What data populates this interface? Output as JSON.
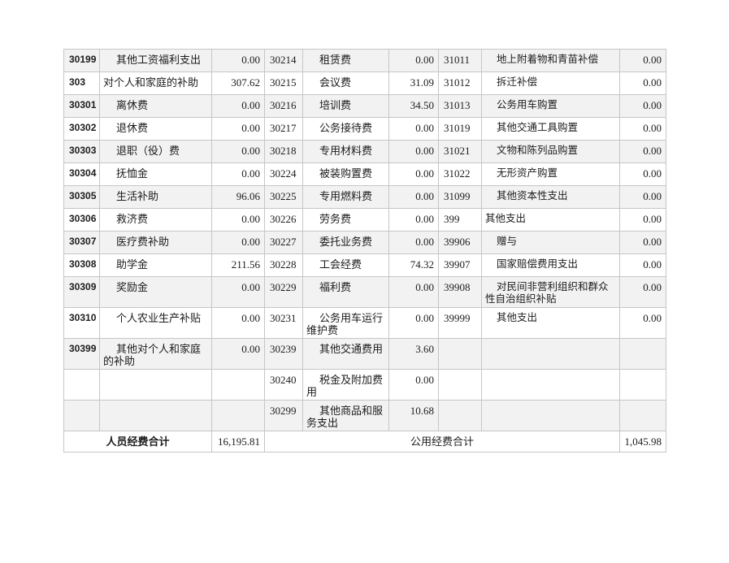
{
  "table": {
    "stripe_color": "#f2f2f2",
    "border_color": "#c6c6c6",
    "rows": [
      {
        "left": {
          "code": "30199",
          "name": "其他工资福利支出",
          "value": "0.00",
          "level": "sub"
        },
        "mid": {
          "code": "30214",
          "name": "租赁费",
          "value": "0.00",
          "level": "sub"
        },
        "right": {
          "code": "31011",
          "name": "地上附着物和青苗补偿",
          "value": "0.00",
          "level": "sub"
        }
      },
      {
        "left": {
          "code": "303",
          "name": "对个人和家庭的补助",
          "value": "307.62",
          "level": "top"
        },
        "mid": {
          "code": "30215",
          "name": "会议费",
          "value": "31.09",
          "level": "sub"
        },
        "right": {
          "code": "31012",
          "name": "拆迁补偿",
          "value": "0.00",
          "level": "sub"
        }
      },
      {
        "left": {
          "code": "30301",
          "name": "离休费",
          "value": "0.00",
          "level": "sub"
        },
        "mid": {
          "code": "30216",
          "name": "培训费",
          "value": "34.50",
          "level": "sub"
        },
        "right": {
          "code": "31013",
          "name": "公务用车购置",
          "value": "0.00",
          "level": "sub"
        }
      },
      {
        "left": {
          "code": "30302",
          "name": "退休费",
          "value": "0.00",
          "level": "sub"
        },
        "mid": {
          "code": "30217",
          "name": "公务接待费",
          "value": "0.00",
          "level": "sub"
        },
        "right": {
          "code": "31019",
          "name": "其他交通工具购置",
          "value": "0.00",
          "level": "sub"
        }
      },
      {
        "left": {
          "code": "30303",
          "name": "退职（役）费",
          "value": "0.00",
          "level": "sub"
        },
        "mid": {
          "code": "30218",
          "name": "专用材料费",
          "value": "0.00",
          "level": "sub"
        },
        "right": {
          "code": "31021",
          "name": "文物和陈列品购置",
          "value": "0.00",
          "level": "sub"
        }
      },
      {
        "left": {
          "code": "30304",
          "name": "抚恤金",
          "value": "0.00",
          "level": "sub"
        },
        "mid": {
          "code": "30224",
          "name": "被装购置费",
          "value": "0.00",
          "level": "sub"
        },
        "right": {
          "code": "31022",
          "name": "无形资产购置",
          "value": "0.00",
          "level": "sub"
        }
      },
      {
        "left": {
          "code": "30305",
          "name": "生活补助",
          "value": "96.06",
          "level": "sub"
        },
        "mid": {
          "code": "30225",
          "name": "专用燃料费",
          "value": "0.00",
          "level": "sub"
        },
        "right": {
          "code": "31099",
          "name": "其他资本性支出",
          "value": "0.00",
          "level": "sub"
        }
      },
      {
        "left": {
          "code": "30306",
          "name": "救济费",
          "value": "0.00",
          "level": "sub"
        },
        "mid": {
          "code": "30226",
          "name": "劳务费",
          "value": "0.00",
          "level": "sub"
        },
        "right": {
          "code": "399",
          "name": "其他支出",
          "value": "0.00",
          "level": "top"
        }
      },
      {
        "left": {
          "code": "30307",
          "name": "医疗费补助",
          "value": "0.00",
          "level": "sub"
        },
        "mid": {
          "code": "30227",
          "name": "委托业务费",
          "value": "0.00",
          "level": "sub"
        },
        "right": {
          "code": "39906",
          "name": "赠与",
          "value": "0.00",
          "level": "sub"
        }
      },
      {
        "left": {
          "code": "30308",
          "name": "助学金",
          "value": "211.56",
          "level": "sub"
        },
        "mid": {
          "code": "30228",
          "name": "工会经费",
          "value": "74.32",
          "level": "sub"
        },
        "right": {
          "code": "39907",
          "name": "国家赔偿费用支出",
          "value": "0.00",
          "level": "sub"
        }
      },
      {
        "left": {
          "code": "30309",
          "name": "奖励金",
          "value": "0.00",
          "level": "sub"
        },
        "mid": {
          "code": "30229",
          "name": "福利费",
          "value": "0.00",
          "level": "sub"
        },
        "right": {
          "code": "39908",
          "name": "对民间非营利组织和群众性自治组织补贴",
          "value": "0.00",
          "level": "sub"
        }
      },
      {
        "left": {
          "code": "30310",
          "name": "个人农业生产补贴",
          "value": "0.00",
          "level": "sub"
        },
        "mid": {
          "code": "30231",
          "name": "公务用车运行维护费",
          "value": "0.00",
          "level": "sub"
        },
        "right": {
          "code": "39999",
          "name": "其他支出",
          "value": "0.00",
          "level": "sub"
        }
      },
      {
        "left": {
          "code": "30399",
          "name": "其他对个人和家庭的补助",
          "value": "0.00",
          "level": "sub"
        },
        "mid": {
          "code": "30239",
          "name": "其他交通费用",
          "value": "3.60",
          "level": "sub"
        },
        "right": null
      },
      {
        "left": null,
        "mid": {
          "code": "30240",
          "name": "税金及附加费用",
          "value": "0.00",
          "level": "sub"
        },
        "right": null
      },
      {
        "left": null,
        "mid": {
          "code": "30299",
          "name": "其他商品和服务支出",
          "value": "10.68",
          "level": "sub"
        },
        "right": null
      }
    ],
    "footer": {
      "personnel_total_label": "人员经费合计",
      "personnel_total_value": "16,195.81",
      "public_total_label": "公用经费合计",
      "public_total_value": "1,045.98"
    }
  }
}
